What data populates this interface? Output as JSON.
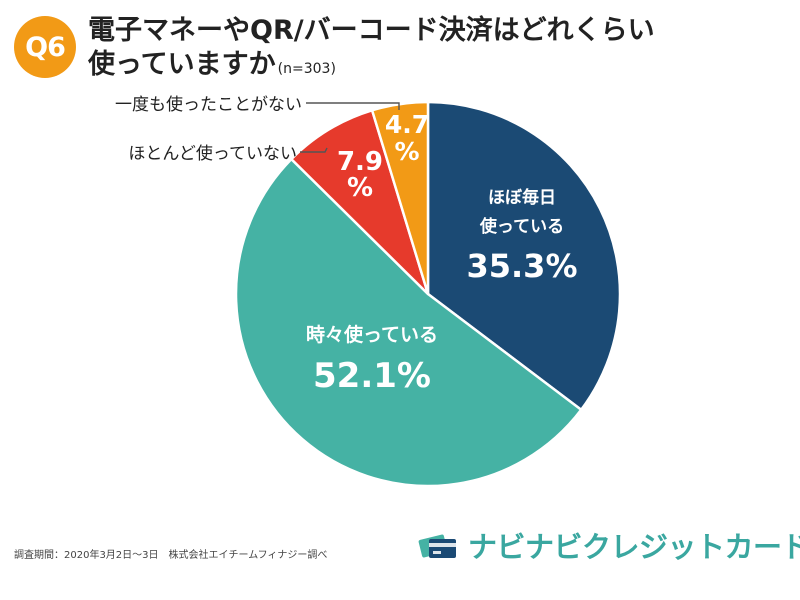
{
  "question": {
    "badge": "Q6",
    "title_line1": "電子マネーやQR/バーコード決済はどれくらい",
    "title_line2": "使っていますか",
    "sample": "(n=303)"
  },
  "chart_data": {
    "type": "pie",
    "start_angle_deg": 0,
    "direction": "clockwise",
    "slices": [
      {
        "label_lines": [
          "ほぼ毎日",
          "使っている"
        ],
        "value": 35.3,
        "value_label": "35.3%",
        "color": "#1b4a74",
        "label_position": "inside"
      },
      {
        "label_lines": [
          "時々使っている"
        ],
        "value": 52.1,
        "value_label": "52.1%",
        "color": "#45b2a4",
        "label_position": "inside"
      },
      {
        "label_lines": [
          "ほとんど使っていない"
        ],
        "value": 7.9,
        "value_label_lines": [
          "7.9",
          "%"
        ],
        "color": "#e63a2c",
        "label_position": "outside"
      },
      {
        "label_lines": [
          "一度も使ったことがない"
        ],
        "value": 4.7,
        "value_label_lines": [
          "4.7",
          "%"
        ],
        "color": "#f29a16",
        "label_position": "outside"
      }
    ]
  },
  "footer": {
    "source": "調査期間：2020年3月2日〜3日　株式会社エイチームフィナジー調べ",
    "brand": "ナビナビクレジットカード",
    "logo_icon": "credit-card-icon"
  }
}
